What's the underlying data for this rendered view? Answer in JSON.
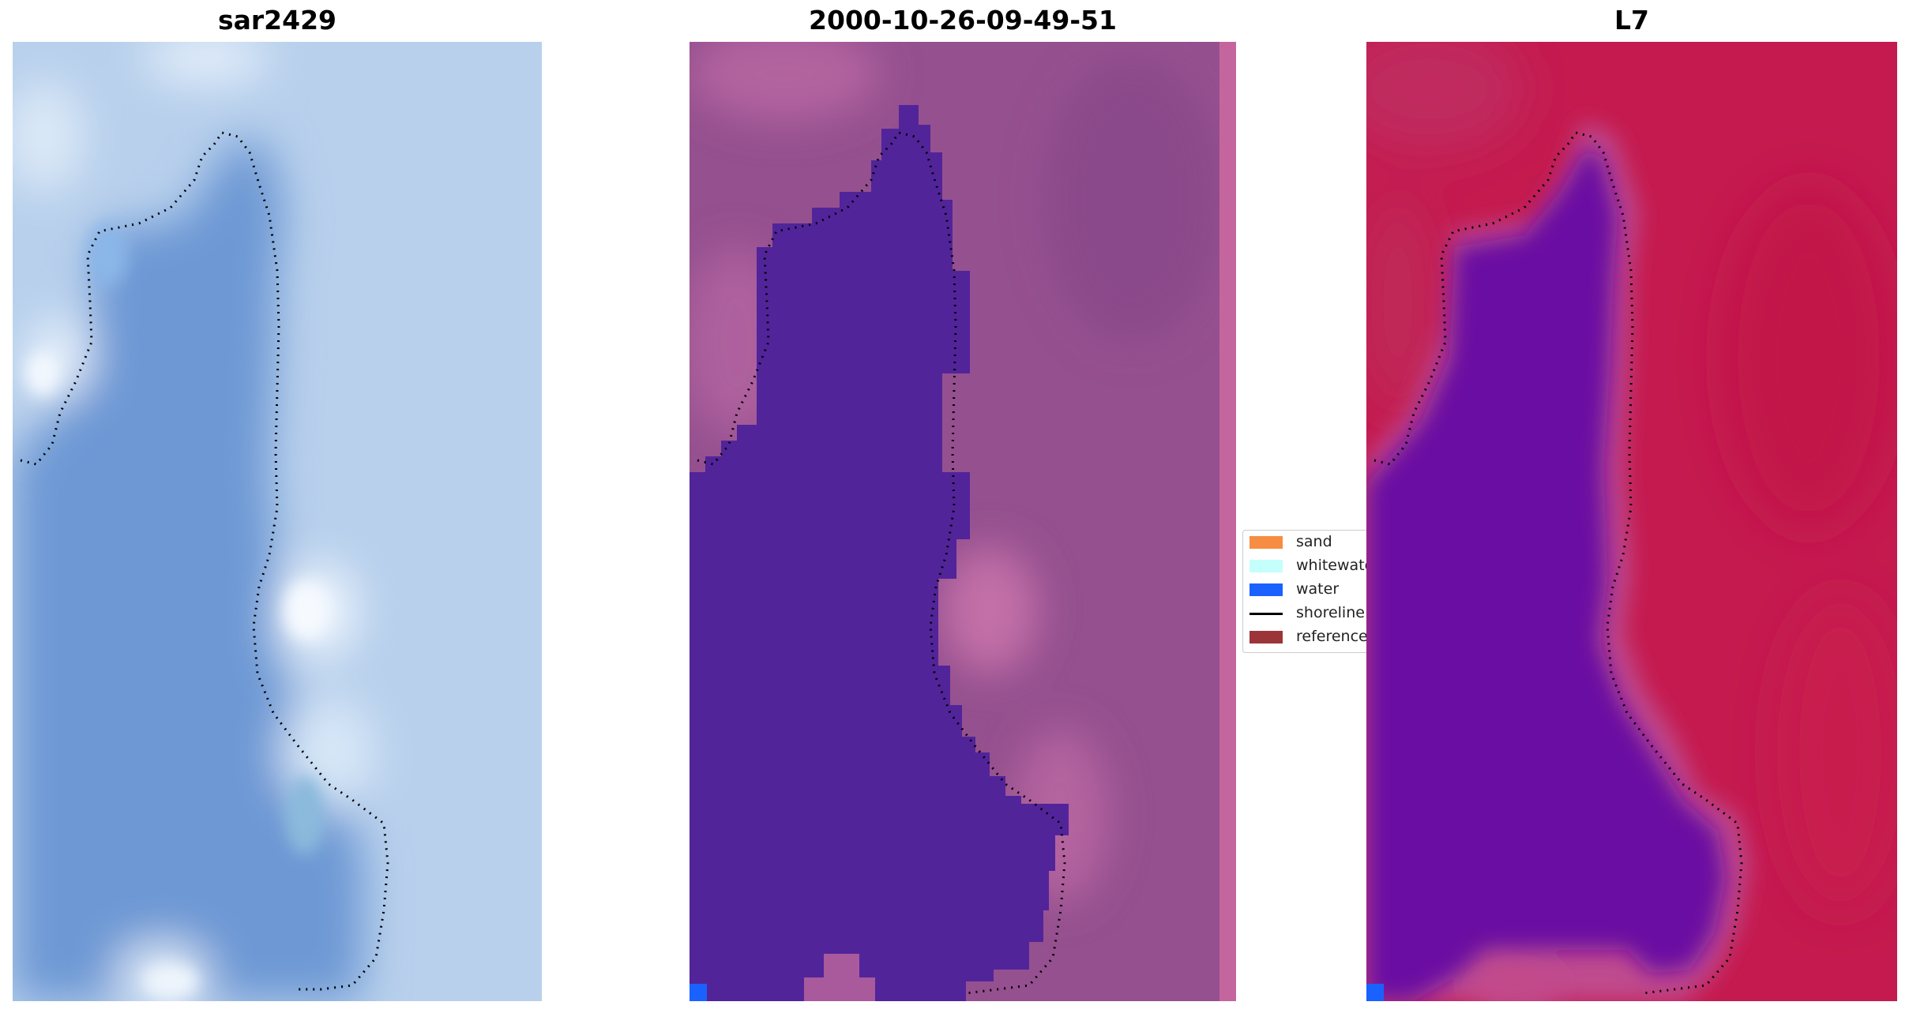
{
  "panels": [
    {
      "title": "sar2429"
    },
    {
      "title": "2000-10-26-09-49-51"
    },
    {
      "title": "L7"
    }
  ],
  "legend": {
    "items": [
      {
        "label": "sand",
        "color": "#f68d42"
      },
      {
        "label": "whitewater",
        "color": "#c4fffb"
      },
      {
        "label": "water",
        "color": "#1a62ff"
      },
      {
        "label": "shoreline",
        "color": "#000000"
      },
      {
        "label": "reference",
        "color": "#9b3538"
      }
    ]
  },
  "colors": {
    "sar_water": "#6d98d4",
    "sar_land": "#b8d0ec",
    "sar_bright": "#f1f7fd",
    "class_water": "#52249a",
    "class_land": "#95508f",
    "class_edge": "#c5659e",
    "l7_water": "#6b11a2",
    "l7_land": "#c41a4f",
    "l7_edge": "#c04c8e"
  }
}
